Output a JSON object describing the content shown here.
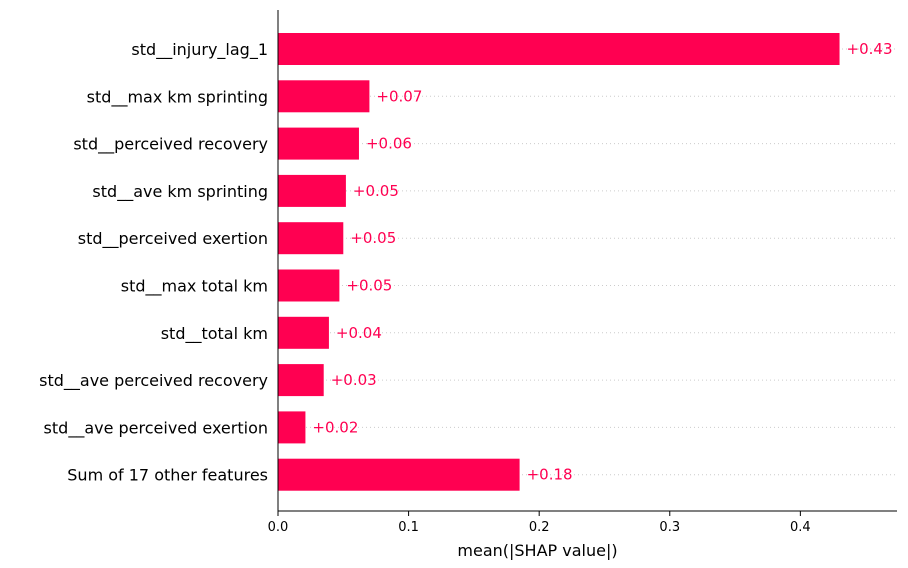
{
  "chart_data": {
    "type": "bar",
    "orientation": "horizontal",
    "categories": [
      "std__injury_lag_1",
      "std__max km sprinting",
      "std__perceived recovery",
      "std__ave km sprinting",
      "std__perceived exertion",
      "std__max total km",
      "std__total km",
      "std__ave perceived recovery",
      "std__ave perceived exertion",
      "Sum of 17 other features"
    ],
    "values": [
      0.43,
      0.07,
      0.062,
      0.052,
      0.05,
      0.047,
      0.039,
      0.035,
      0.021,
      0.185
    ],
    "value_labels": [
      "+0.43",
      "+0.07",
      "+0.06",
      "+0.05",
      "+0.05",
      "+0.05",
      "+0.04",
      "+0.03",
      "+0.02",
      "+0.18"
    ],
    "xlabel": "mean(|SHAP value|)",
    "ylabel": "",
    "title": "",
    "xlim": [
      0,
      0.474
    ],
    "xticks": [
      0.0,
      0.1,
      0.2,
      0.3,
      0.4
    ],
    "xtick_labels": [
      "0.0",
      "0.1",
      "0.2",
      "0.3",
      "0.4"
    ],
    "grid": "dotted horizontal guide lines per row",
    "colors": {
      "bar": "#ff0051",
      "label": "#ff0051",
      "grid": "#cccccc",
      "axis": "#000000"
    }
  }
}
